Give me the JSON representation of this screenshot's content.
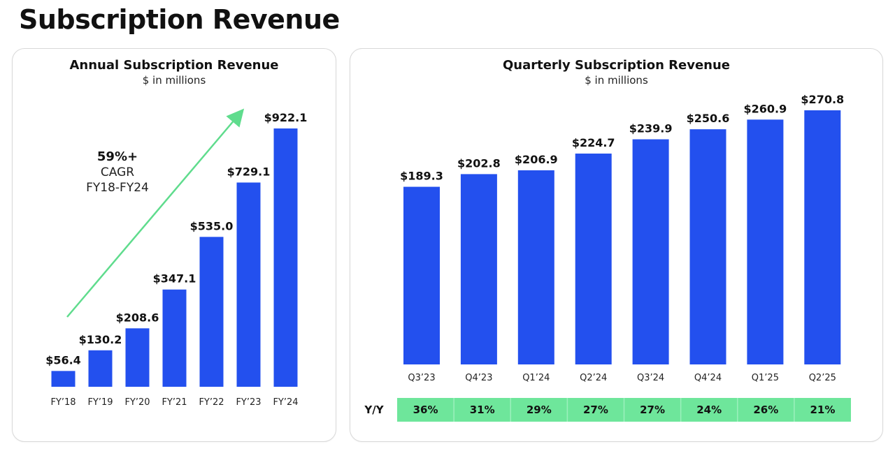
{
  "page": {
    "title": "Subscription Revenue"
  },
  "colors": {
    "bar": "#2350ee",
    "arrow": "#5fdc8d",
    "yy_band": "#6ee69b",
    "yy_divider": "#8eed b3"
  },
  "annual": {
    "title": "Annual Subscription Revenue",
    "subtitle": "$ in millions",
    "cagr": {
      "pct": "59%+",
      "label": "CAGR",
      "range": "FY18-FY24"
    }
  },
  "quarterly": {
    "title": "Quarterly Subscription Revenue",
    "subtitle": "$ in millions",
    "yy_label": "Y/Y",
    "yy_values": [
      "36%",
      "31%",
      "29%",
      "27%",
      "27%",
      "24%",
      "26%",
      "21%"
    ]
  },
  "chart_data": [
    {
      "type": "bar",
      "title": "Annual Subscription Revenue",
      "subtitle": "$ in millions",
      "categories": [
        "FY’18",
        "FY’19",
        "FY’20",
        "FY’21",
        "FY’22",
        "FY’23",
        "FY’24"
      ],
      "values": [
        56.4,
        130.2,
        208.6,
        347.1,
        535.0,
        729.1,
        922.1
      ],
      "value_labels": [
        "$56.4",
        "$130.2",
        "$208.6",
        "$347.1",
        "$535.0",
        "$729.1",
        "$922.1"
      ],
      "xlabel": "",
      "ylabel": "",
      "ylim": [
        0,
        922.1
      ],
      "grid": false,
      "legend": "none"
    },
    {
      "type": "bar",
      "title": "Quarterly Subscription Revenue",
      "subtitle": "$ in millions",
      "categories": [
        "Q3’23",
        "Q4’23",
        "Q1’24",
        "Q2’24",
        "Q3’24",
        "Q4’24",
        "Q1’25",
        "Q2’25"
      ],
      "values": [
        189.3,
        202.8,
        206.9,
        224.7,
        239.9,
        250.6,
        260.9,
        270.8
      ],
      "value_labels": [
        "$189.3",
        "$202.8",
        "$206.9",
        "$224.7",
        "$239.9",
        "$250.6",
        "$260.9",
        "$270.8"
      ],
      "xlabel": "",
      "ylabel": "",
      "ylim": [
        0,
        270.8
      ],
      "grid": false,
      "legend": "none"
    }
  ]
}
